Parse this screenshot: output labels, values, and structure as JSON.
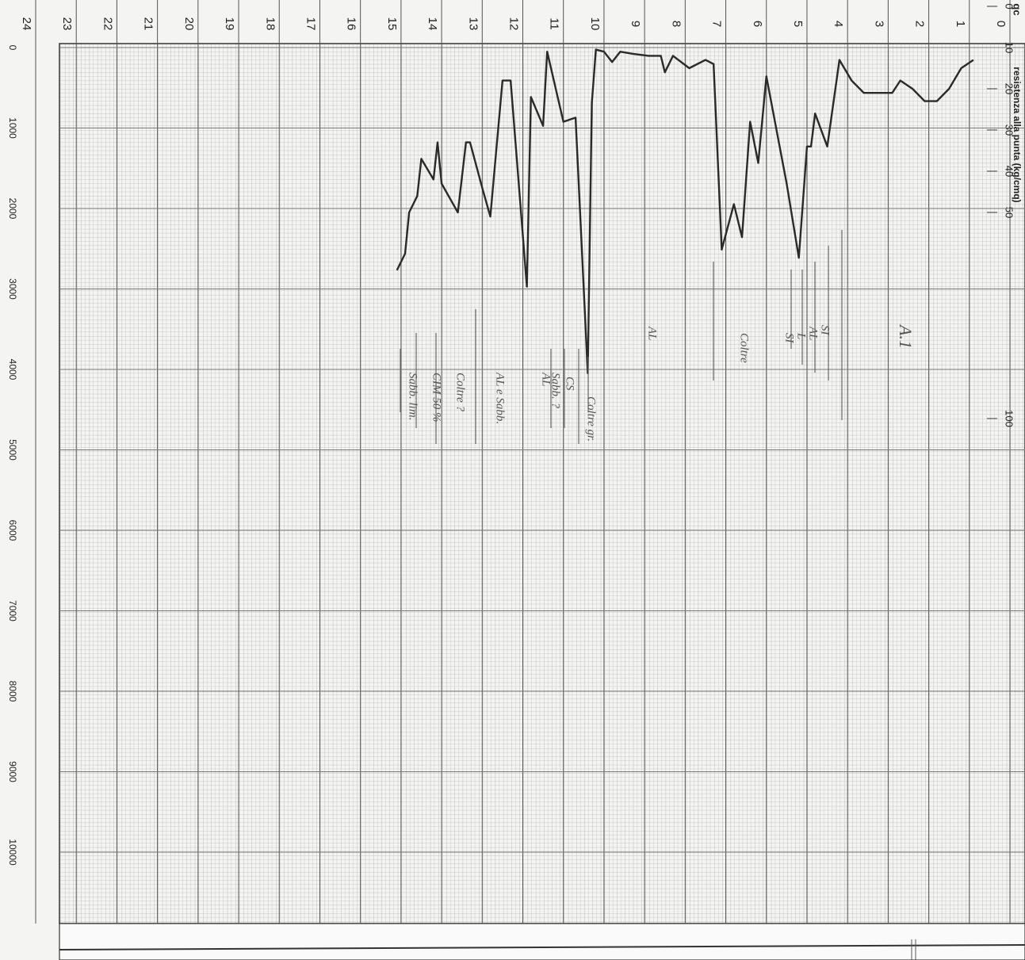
{
  "chart_data": {
    "type": "line",
    "y_axis_symbol": "qc",
    "y_axis_label": "resistenza alla punta (kg/cmq)",
    "x": [
      0.9,
      1.2,
      1.5,
      1.8,
      2.1,
      2.4,
      2.7,
      2.9,
      3.6,
      3.9,
      4.2,
      4.4,
      4.5,
      4.8,
      4.9,
      5.0,
      5.2,
      5.5,
      6.0,
      6.2,
      6.4,
      6.6,
      6.8,
      7.1,
      7.3,
      7.5,
      7.9,
      8.3,
      8.5,
      8.6,
      8.9,
      9.3,
      9.6,
      9.8,
      10.0,
      10.2,
      10.3,
      10.4,
      10.7,
      11.0,
      11.4,
      11.5,
      11.8,
      11.9,
      12.3,
      12.5,
      12.8,
      13.0,
      13.3,
      13.4,
      13.6,
      14.0,
      14.1,
      14.2,
      14.5,
      14.6,
      14.8,
      14.9,
      15.1
    ],
    "series": [
      {
        "name": "qc",
        "color": "#2a2a2a",
        "values": [
          13,
          15,
          20,
          23,
          23,
          20,
          18,
          21,
          21,
          18,
          13,
          27,
          34,
          26,
          34,
          34,
          61,
          43,
          17,
          38,
          28,
          56,
          48,
          59,
          14,
          13,
          15,
          12,
          16,
          12,
          12,
          11.5,
          11,
          13.5,
          11,
          10.5,
          23.5,
          89,
          27,
          28,
          11,
          29,
          22,
          68,
          18,
          18,
          51,
          44,
          33,
          33,
          50,
          43,
          33,
          42,
          37,
          46,
          50,
          60,
          64
        ]
      }
    ],
    "xlim": [
      0,
      24
    ],
    "xticks": [
      0,
      1,
      2,
      3,
      4,
      5,
      6,
      7,
      8,
      9,
      10,
      11,
      12,
      13,
      14,
      15,
      16,
      17,
      18,
      19,
      20,
      21,
      22,
      23,
      24
    ],
    "ylim": [
      0,
      220
    ],
    "yticks": [
      0,
      10,
      20,
      30,
      40,
      50,
      100
    ],
    "y2lim": [
      0,
      10000
    ],
    "y2ticks": [
      0,
      1000,
      2000,
      3000,
      4000,
      5000,
      6000,
      7000,
      8000,
      9000,
      10000
    ],
    "annotations": [
      "A.1",
      "SI",
      "AL",
      "L",
      "SI",
      "Coltre",
      "AL",
      "Coltre gr.",
      "CS",
      "Sabb. ?",
      "AL",
      "AL e Sabb.",
      "Coltre ?",
      "CIM 50 %",
      "Sabb. lim."
    ]
  }
}
